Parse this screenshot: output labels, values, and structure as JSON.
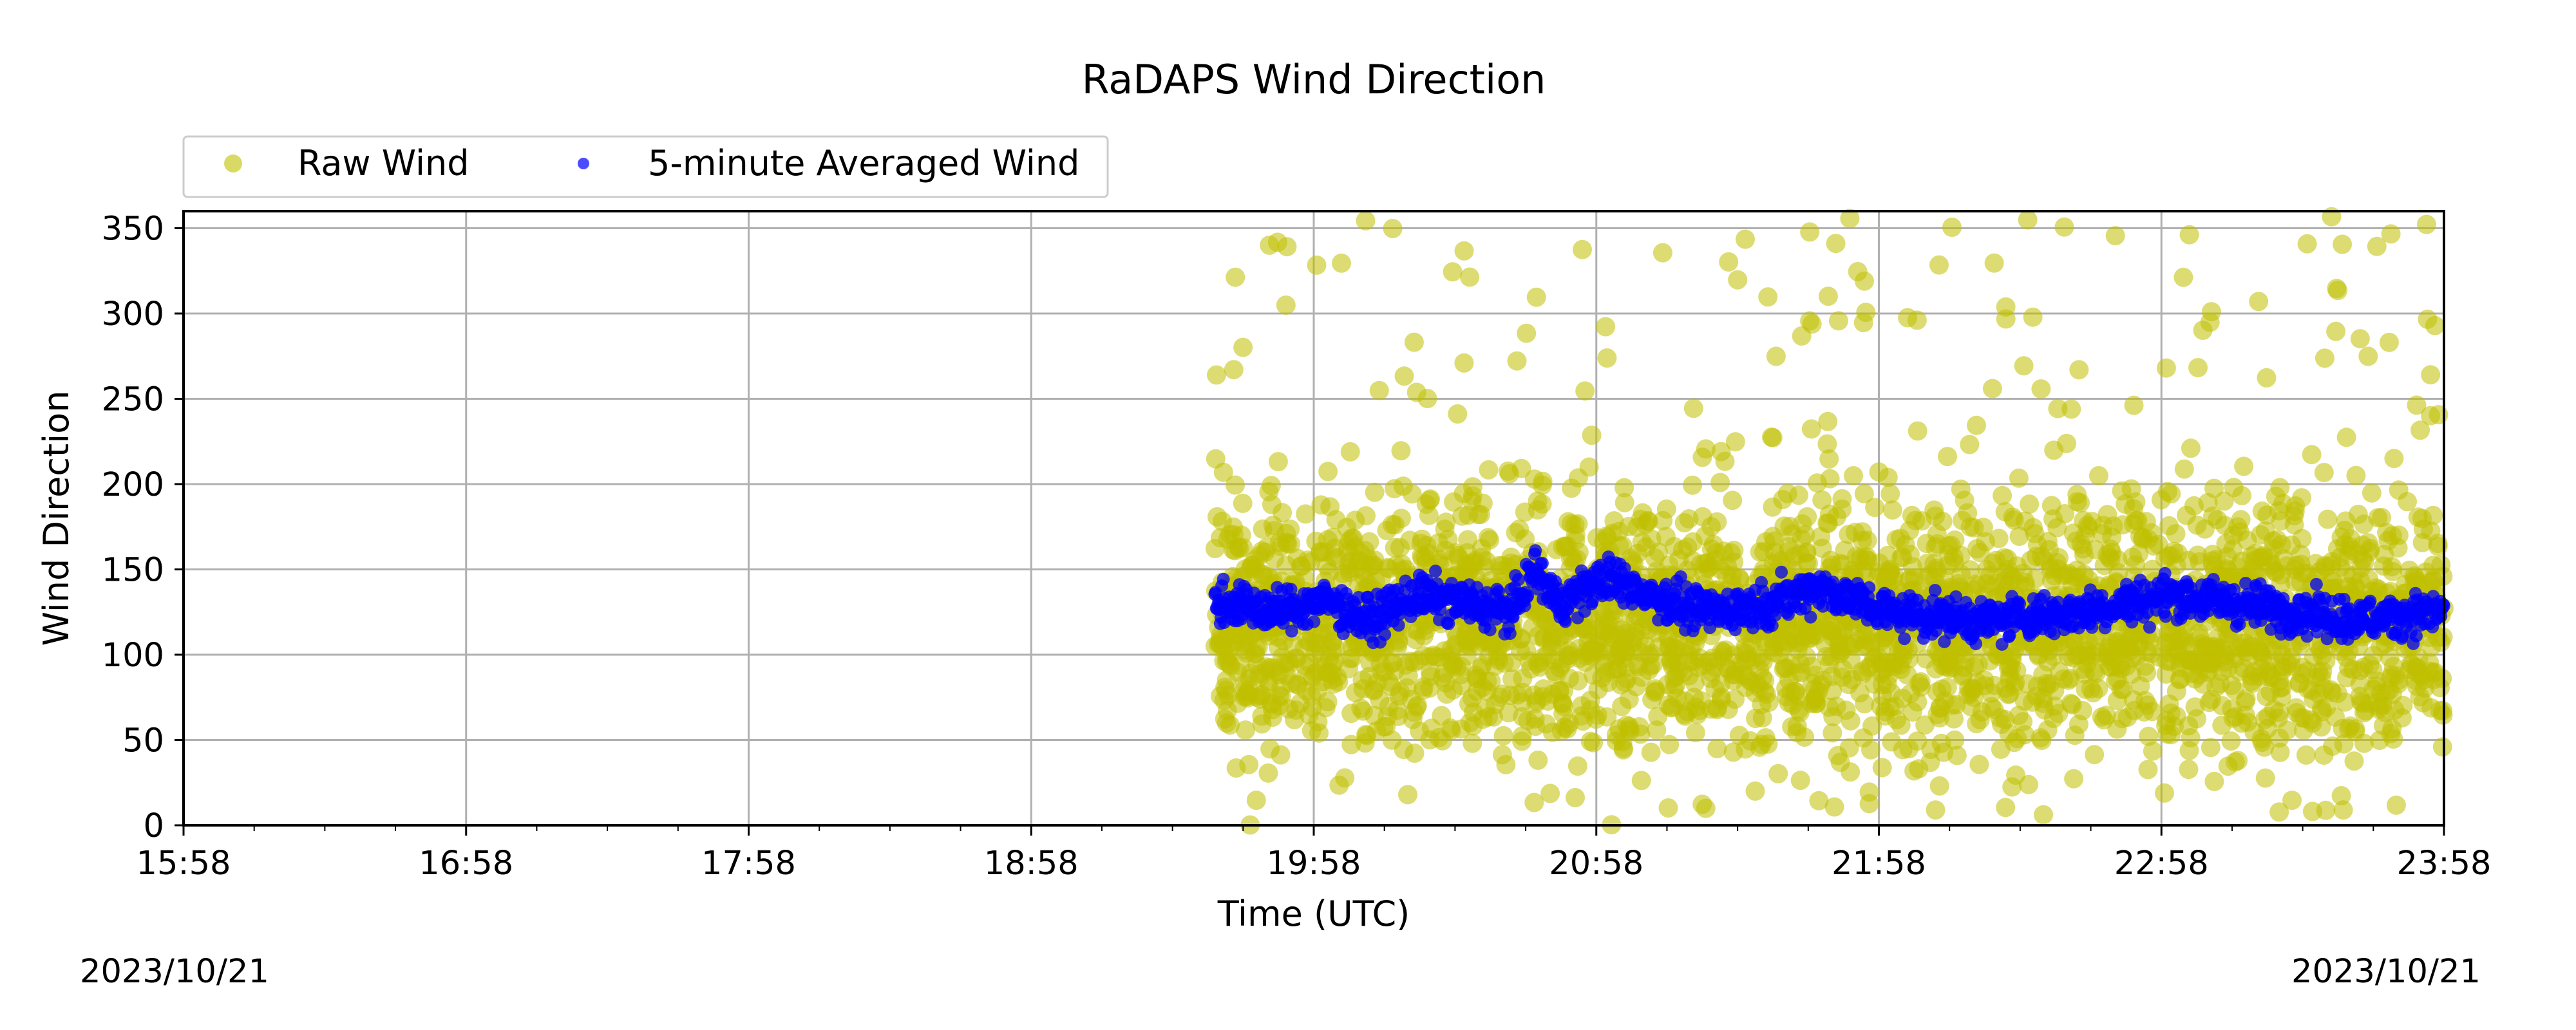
{
  "chart_data": {
    "type": "scatter",
    "title": "RaDAPS Wind Direction",
    "xlabel": "Time (UTC)",
    "ylabel": "Wind Direction",
    "x_ticks": [
      "15:58",
      "16:58",
      "17:58",
      "18:58",
      "19:58",
      "20:58",
      "21:58",
      "22:58",
      "23:58"
    ],
    "x_range_hours": [
      0,
      8
    ],
    "xlim": [
      "15:58",
      "23:58"
    ],
    "ylim": [
      0,
      360
    ],
    "y_ticks": [
      0,
      50,
      100,
      150,
      200,
      250,
      300,
      350
    ],
    "grid": true,
    "legend_placement": "top-left",
    "series": [
      {
        "name": "Raw Wind",
        "color": "#bfbf00",
        "marker": "circle-large",
        "data_start": "19:37",
        "data_end": "23:58",
        "typical_range": [
          60,
          200
        ],
        "outlier_range": [
          0,
          360
        ]
      },
      {
        "name": "5-minute Averaged Wind",
        "color": "#0000ff",
        "marker": "circle-small",
        "data_start": "19:37",
        "data_end": "23:58",
        "x": [
          "19:40",
          "19:50",
          "20:00",
          "20:10",
          "20:20",
          "20:30",
          "20:40",
          "20:45",
          "20:50",
          "21:00",
          "21:10",
          "21:20",
          "21:35",
          "21:45",
          "22:00",
          "22:20",
          "22:40",
          "23:00",
          "23:20",
          "23:40",
          "23:58"
        ],
        "values": [
          130,
          125,
          132,
          120,
          135,
          130,
          125,
          150,
          130,
          145,
          135,
          125,
          130,
          140,
          125,
          120,
          125,
          135,
          128,
          120,
          126
        ]
      }
    ]
  },
  "footer": {
    "date_left": "2023/10/21",
    "date_right": "2023/10/21"
  }
}
